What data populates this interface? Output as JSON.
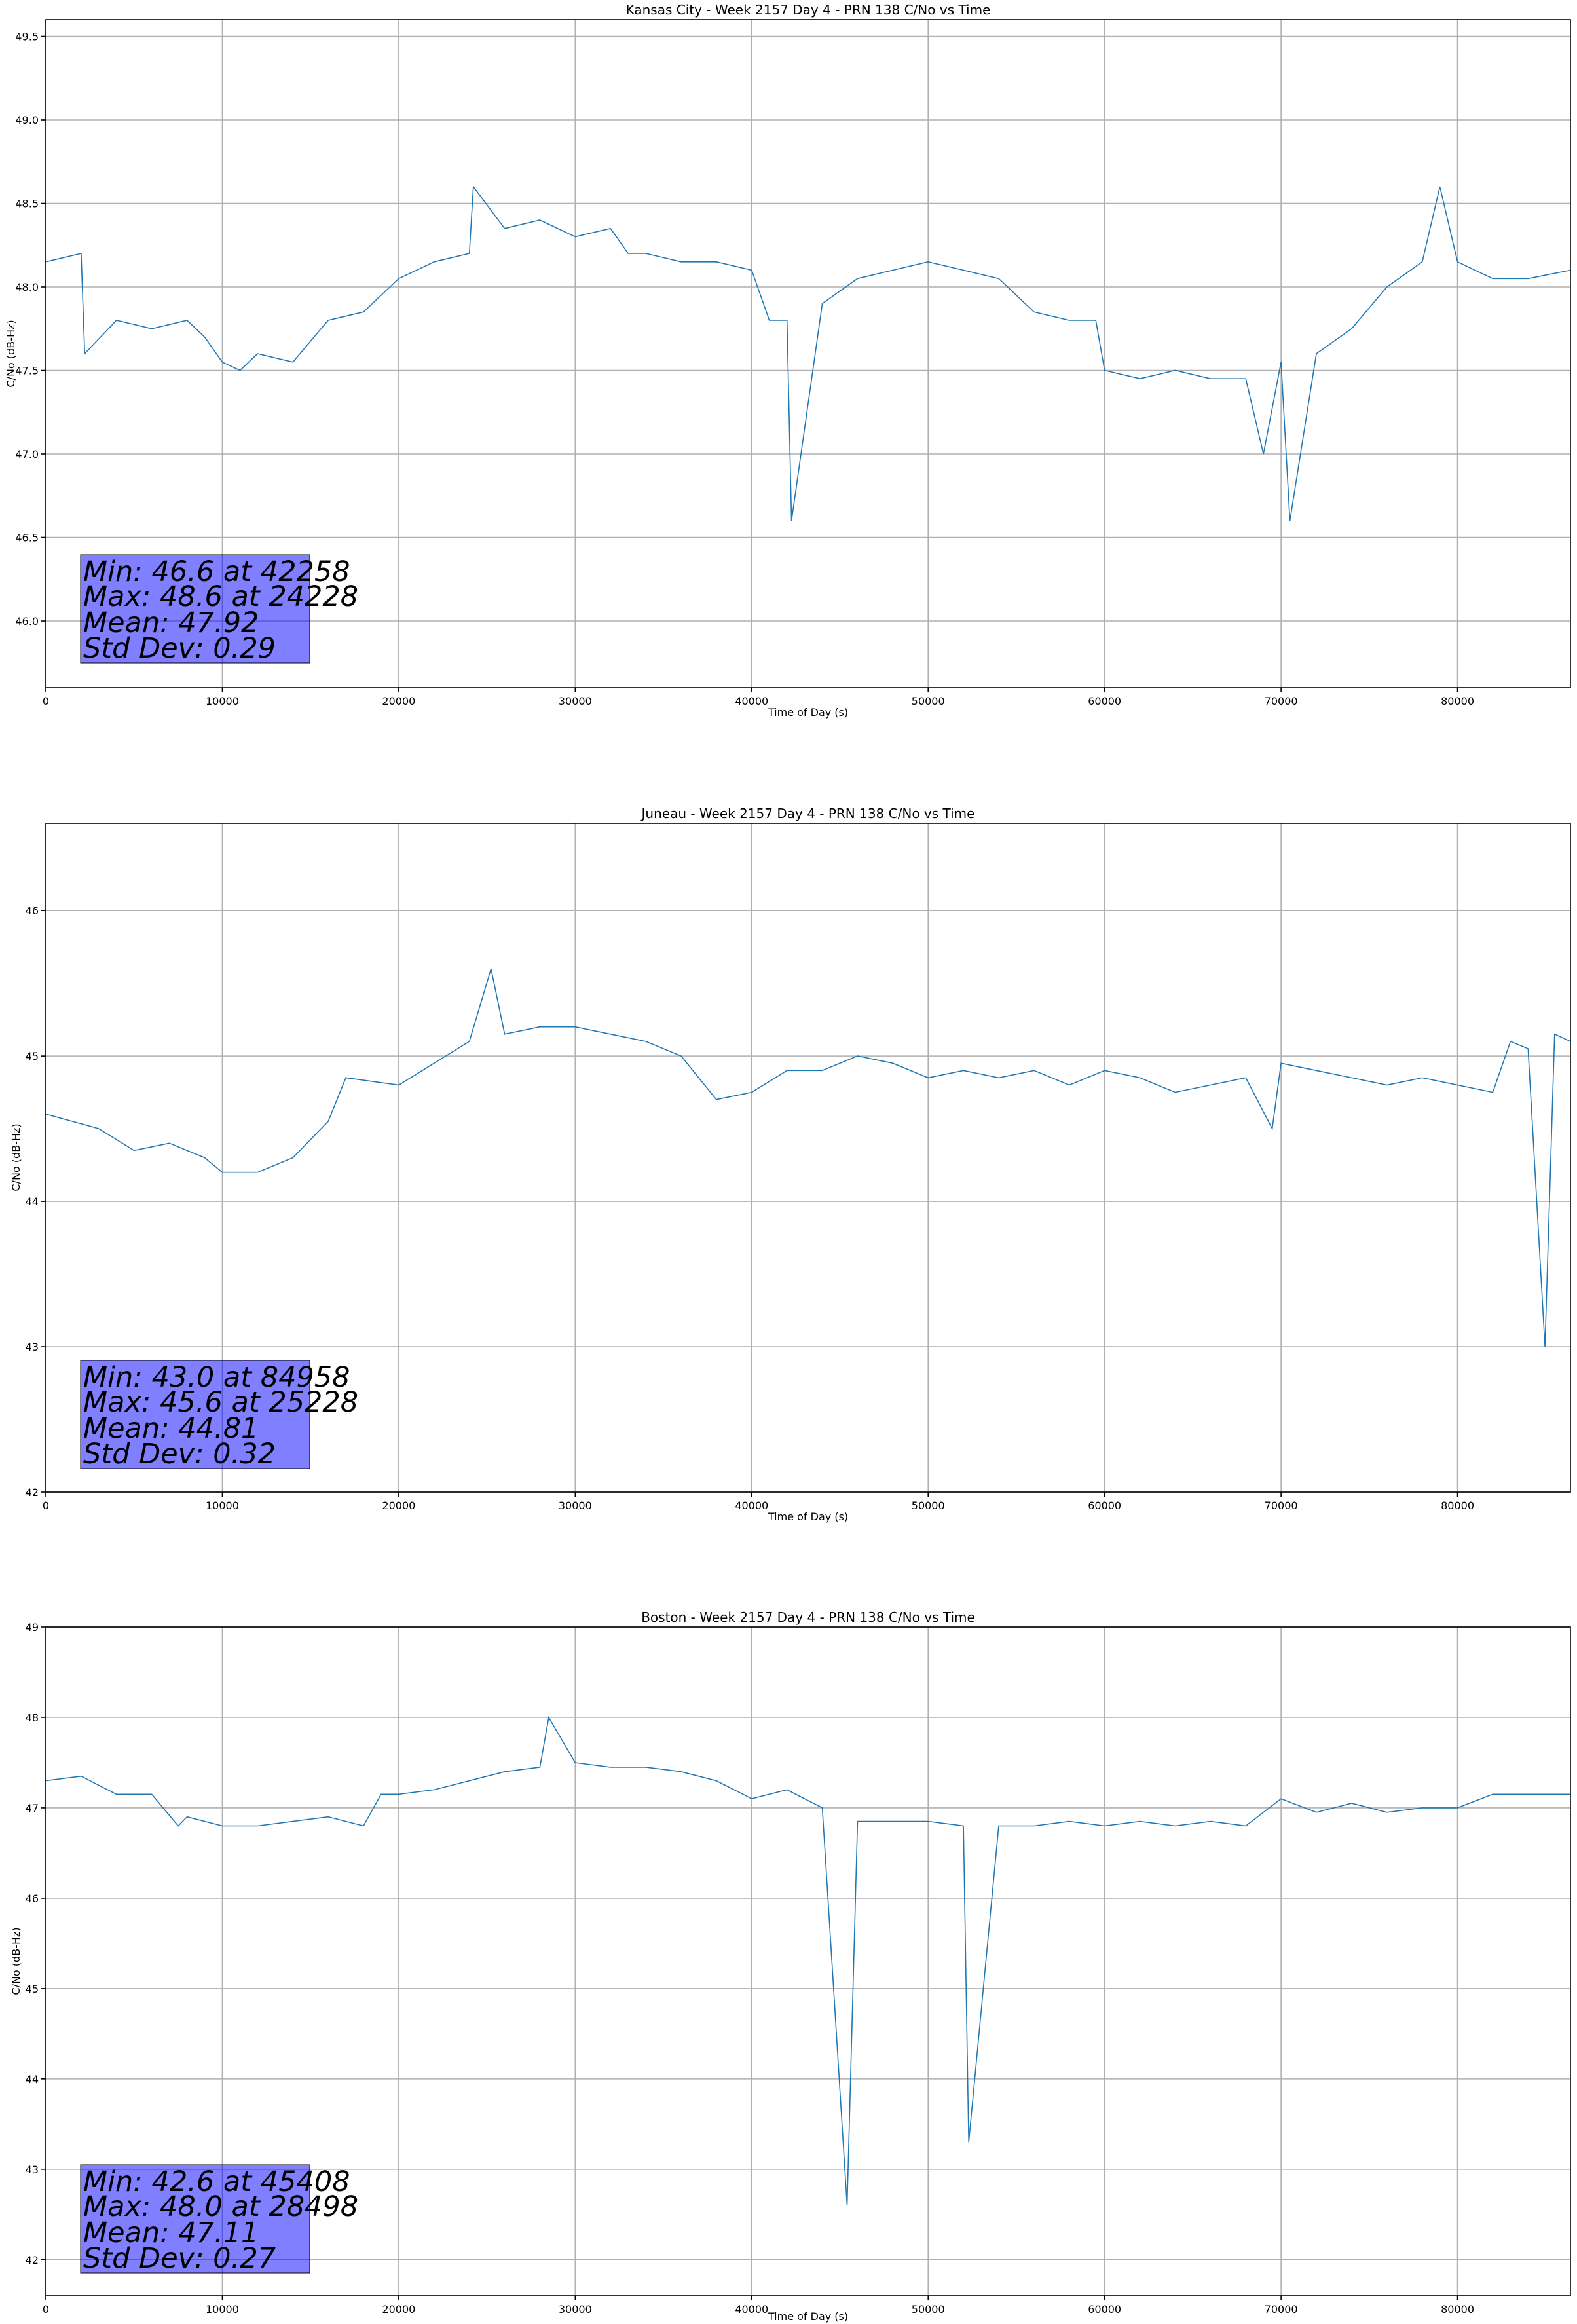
{
  "chart_data": [
    {
      "type": "line",
      "title": "Kansas City - Week 2157 Day 4 - PRN 138 C/No vs Time",
      "xlabel": "Time of Day (s)",
      "ylabel": "C/No (dB-Hz)",
      "xlim": [
        0,
        86400
      ],
      "ylim": [
        45.6,
        49.6
      ],
      "xticks": [
        0,
        10000,
        20000,
        30000,
        40000,
        50000,
        60000,
        70000,
        80000
      ],
      "yticks": [
        46.0,
        46.5,
        47.0,
        47.5,
        48.0,
        48.5,
        49.0,
        49.5
      ],
      "ytick_decimals": 1,
      "grid": true,
      "series": [
        {
          "name": "C/No",
          "color": "#1f77b4",
          "x": [
            0,
            2000,
            2200,
            4000,
            6000,
            8000,
            9000,
            10000,
            11000,
            12000,
            14000,
            16000,
            18000,
            20000,
            22000,
            24000,
            24228,
            26000,
            28000,
            30000,
            32000,
            33000,
            34000,
            36000,
            38000,
            40000,
            41000,
            42000,
            42258,
            44000,
            46000,
            48000,
            50000,
            52000,
            54000,
            56000,
            58000,
            59500,
            60000,
            62000,
            64000,
            66000,
            68000,
            69000,
            70000,
            70500,
            72000,
            74000,
            76000,
            78000,
            79000,
            80000,
            82000,
            84000,
            86400
          ],
          "values": [
            48.15,
            48.2,
            47.6,
            47.8,
            47.75,
            47.8,
            47.7,
            47.55,
            47.5,
            47.6,
            47.55,
            47.8,
            47.85,
            48.05,
            48.15,
            48.2,
            48.6,
            48.35,
            48.4,
            48.3,
            48.35,
            48.2,
            48.2,
            48.15,
            48.15,
            48.1,
            47.8,
            47.8,
            46.6,
            47.9,
            48.05,
            48.1,
            48.15,
            48.1,
            48.05,
            47.85,
            47.8,
            47.8,
            47.5,
            47.45,
            47.5,
            47.45,
            47.45,
            47.0,
            47.55,
            46.6,
            47.6,
            47.75,
            48.0,
            48.15,
            48.6,
            48.15,
            48.05,
            48.05,
            48.1
          ]
        }
      ],
      "stats": [
        "Min: 46.6 at 42258",
        "Max: 48.6 at 24228",
        "Mean: 47.92",
        "Std Dev: 0.29"
      ]
    },
    {
      "type": "line",
      "title": "Juneau - Week 2157 Day 4 - PRN 138 C/No vs Time",
      "xlabel": "Time of Day (s)",
      "ylabel": "C/No (dB-Hz)",
      "xlim": [
        0,
        86400
      ],
      "ylim": [
        42,
        46.6
      ],
      "xticks": [
        0,
        10000,
        20000,
        30000,
        40000,
        50000,
        60000,
        70000,
        80000
      ],
      "yticks": [
        42,
        43,
        44,
        45,
        46
      ],
      "ytick_decimals": 0,
      "grid": true,
      "series": [
        {
          "name": "C/No",
          "color": "#1f77b4",
          "x": [
            0,
            1500,
            3000,
            5000,
            7000,
            9000,
            10000,
            12000,
            14000,
            16000,
            17000,
            20000,
            22000,
            24000,
            25228,
            26000,
            28000,
            30000,
            32000,
            34000,
            36000,
            37000,
            38000,
            40000,
            42000,
            44000,
            46000,
            48000,
            50000,
            52000,
            54000,
            56000,
            58000,
            60000,
            62000,
            64000,
            66000,
            68000,
            69500,
            70000,
            72000,
            74000,
            76000,
            78000,
            80000,
            82000,
            83000,
            84000,
            84958,
            85500,
            86400
          ],
          "values": [
            44.6,
            44.55,
            44.5,
            44.35,
            44.4,
            44.3,
            44.2,
            44.2,
            44.3,
            44.55,
            44.85,
            44.8,
            44.95,
            45.1,
            45.6,
            45.15,
            45.2,
            45.2,
            45.15,
            45.1,
            45.0,
            44.85,
            44.7,
            44.75,
            44.9,
            44.9,
            45.0,
            44.95,
            44.85,
            44.9,
            44.85,
            44.9,
            44.8,
            44.9,
            44.85,
            44.75,
            44.8,
            44.85,
            44.5,
            44.95,
            44.9,
            44.85,
            44.8,
            44.85,
            44.8,
            44.75,
            45.1,
            45.05,
            43.0,
            45.15,
            45.1
          ]
        }
      ],
      "stats": [
        "Min: 43.0 at 84958",
        "Max: 45.6 at 25228",
        "Mean: 44.81",
        "Std Dev: 0.32"
      ]
    },
    {
      "type": "line",
      "title": "Boston - Week 2157 Day 4 - PRN 138 C/No vs Time",
      "xlabel": "Time of Day (s)",
      "ylabel": "C/No (dB-Hz)",
      "xlim": [
        0,
        86400
      ],
      "ylim": [
        41.6,
        49
      ],
      "xticks": [
        0,
        10000,
        20000,
        30000,
        40000,
        50000,
        60000,
        70000,
        80000
      ],
      "yticks": [
        42,
        43,
        44,
        45,
        46,
        47,
        48,
        49
      ],
      "ytick_decimals": 0,
      "grid": true,
      "series": [
        {
          "name": "C/No",
          "color": "#1f77b4",
          "x": [
            0,
            2000,
            4000,
            6000,
            7500,
            8000,
            10000,
            12000,
            14000,
            16000,
            18000,
            19000,
            20000,
            22000,
            24000,
            26000,
            28000,
            28498,
            30000,
            32000,
            34000,
            36000,
            38000,
            40000,
            42000,
            44000,
            45408,
            46000,
            48000,
            50000,
            52000,
            52300,
            54000,
            56000,
            58000,
            60000,
            62000,
            64000,
            66000,
            68000,
            70000,
            72000,
            74000,
            76000,
            78000,
            80000,
            82000,
            84000,
            86400
          ],
          "values": [
            47.3,
            47.35,
            47.15,
            47.15,
            46.8,
            46.9,
            46.8,
            46.8,
            46.85,
            46.9,
            46.8,
            47.15,
            47.15,
            47.2,
            47.3,
            47.4,
            47.45,
            48.0,
            47.5,
            47.45,
            47.45,
            47.4,
            47.3,
            47.1,
            47.2,
            47.0,
            42.6,
            46.85,
            46.85,
            46.85,
            46.8,
            43.3,
            46.8,
            46.8,
            46.85,
            46.8,
            46.85,
            46.8,
            46.85,
            46.8,
            47.1,
            46.95,
            47.05,
            46.95,
            47.0,
            47.0,
            47.15,
            47.15,
            47.15
          ]
        }
      ],
      "stats": [
        "Min: 42.6 at 45408",
        "Max: 48.0 at 28498",
        "Mean: 47.11",
        "Std Dev: 0.27"
      ]
    }
  ]
}
